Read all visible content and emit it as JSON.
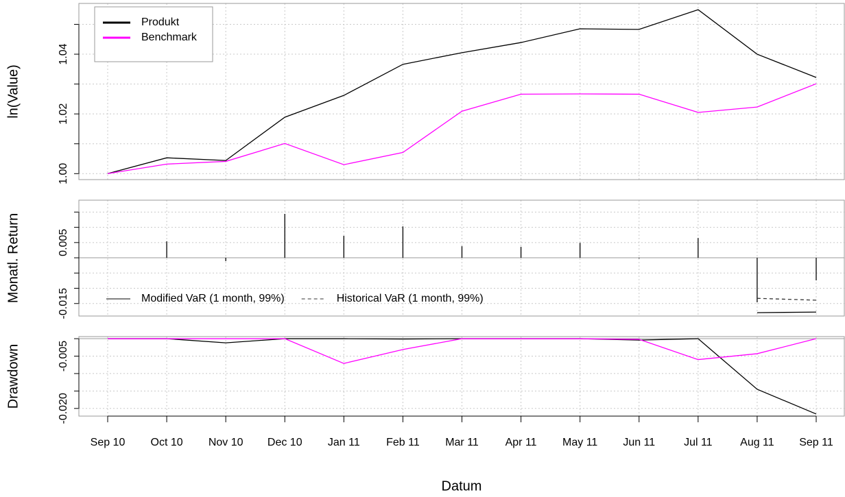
{
  "chart_data": [
    {
      "type": "line",
      "ylabel": "ln(Value)",
      "ylim": [
        0.998,
        1.057
      ],
      "yticks": [
        {
          "value": 1,
          "label": "1.00"
        },
        {
          "value": 1.01,
          "label": null
        },
        {
          "value": 1.02,
          "label": "1.02"
        },
        {
          "value": 1.03,
          "label": null
        },
        {
          "value": 1.04,
          "label": "1.04"
        },
        {
          "value": 1.05,
          "label": null
        }
      ],
      "grid": true,
      "legend": "top-left",
      "series": [
        {
          "name": "Produkt",
          "color": "#000000",
          "values": [
            1.0,
            1.0053,
            1.0044,
            1.0189,
            1.0262,
            1.0366,
            1.0405,
            1.0439,
            1.0485,
            1.0483,
            1.0549,
            1.04,
            1.0322
          ]
        },
        {
          "name": "Benchmark",
          "color": "#ff00ff",
          "values": [
            1.0,
            1.0032,
            1.0041,
            1.0101,
            1.003,
            1.0071,
            1.0209,
            1.0266,
            1.0267,
            1.0266,
            1.0205,
            1.0223,
            1.0301
          ]
        }
      ]
    },
    {
      "type": "bar",
      "ylabel": "Monatl. Return",
      "ylim": [
        -0.0191,
        0.0189
      ],
      "yticks": [
        {
          "value": -0.015,
          "label": "-0.015"
        },
        {
          "value": -0.01,
          "label": null
        },
        {
          "value": -0.005,
          "label": null
        },
        {
          "value": 0,
          "label": null
        },
        {
          "value": 0.005,
          "label": "0.005"
        },
        {
          "value": 0.01,
          "label": null
        },
        {
          "value": 0.015,
          "label": null
        }
      ],
      "grid": true,
      "legend": "bottom-left",
      "color": "#000000",
      "values": [
        null,
        0.0054,
        -0.0011,
        0.0144,
        0.0072,
        0.0103,
        0.0038,
        0.0036,
        0.0049,
        -0.0002,
        0.0065,
        -0.0146,
        -0.0074
      ],
      "series": [
        {
          "name": "Modified VaR (1 month, 99%)",
          "color": "#000000",
          "dash": false,
          "values": [
            null,
            null,
            null,
            null,
            null,
            null,
            null,
            null,
            null,
            null,
            null,
            -0.018,
            -0.0178
          ]
        },
        {
          "name": "Historical VaR (1 month, 99%)",
          "color": "#333333",
          "dash": true,
          "values": [
            null,
            null,
            null,
            null,
            null,
            null,
            null,
            null,
            null,
            null,
            null,
            -0.0133,
            -0.0139
          ]
        }
      ]
    },
    {
      "type": "line",
      "ylabel": "Drawdown",
      "xlabel": "Datum",
      "ylim": [
        -0.0222,
        0.0006
      ],
      "yticks": [
        {
          "value": 0,
          "label": null
        },
        {
          "value": -0.005,
          "label": "-0.005"
        },
        {
          "value": -0.01,
          "label": null
        },
        {
          "value": -0.015,
          "label": null
        },
        {
          "value": -0.02,
          "label": "-0.020"
        }
      ],
      "grid": true,
      "categories": [
        "Sep 10",
        "Oct 10",
        "Nov 10",
        "Dec 10",
        "Jan 11",
        "Feb 11",
        "Mar 11",
        "Apr 11",
        "May 11",
        "Jun 11",
        "Jul 11",
        "Aug 11",
        "Sep 11"
      ],
      "series": [
        {
          "color": "#000000",
          "values": [
            0,
            0,
            -0.0012,
            0,
            0,
            -0.0001,
            0,
            0,
            0,
            -0.0004,
            0,
            -0.0145,
            -0.0216
          ]
        },
        {
          "color": "#ff00ff",
          "values": [
            0,
            0,
            0,
            0,
            -0.0071,
            -0.0031,
            0,
            0,
            0,
            -0.0002,
            -0.006,
            -0.0043,
            0
          ]
        }
      ]
    }
  ]
}
